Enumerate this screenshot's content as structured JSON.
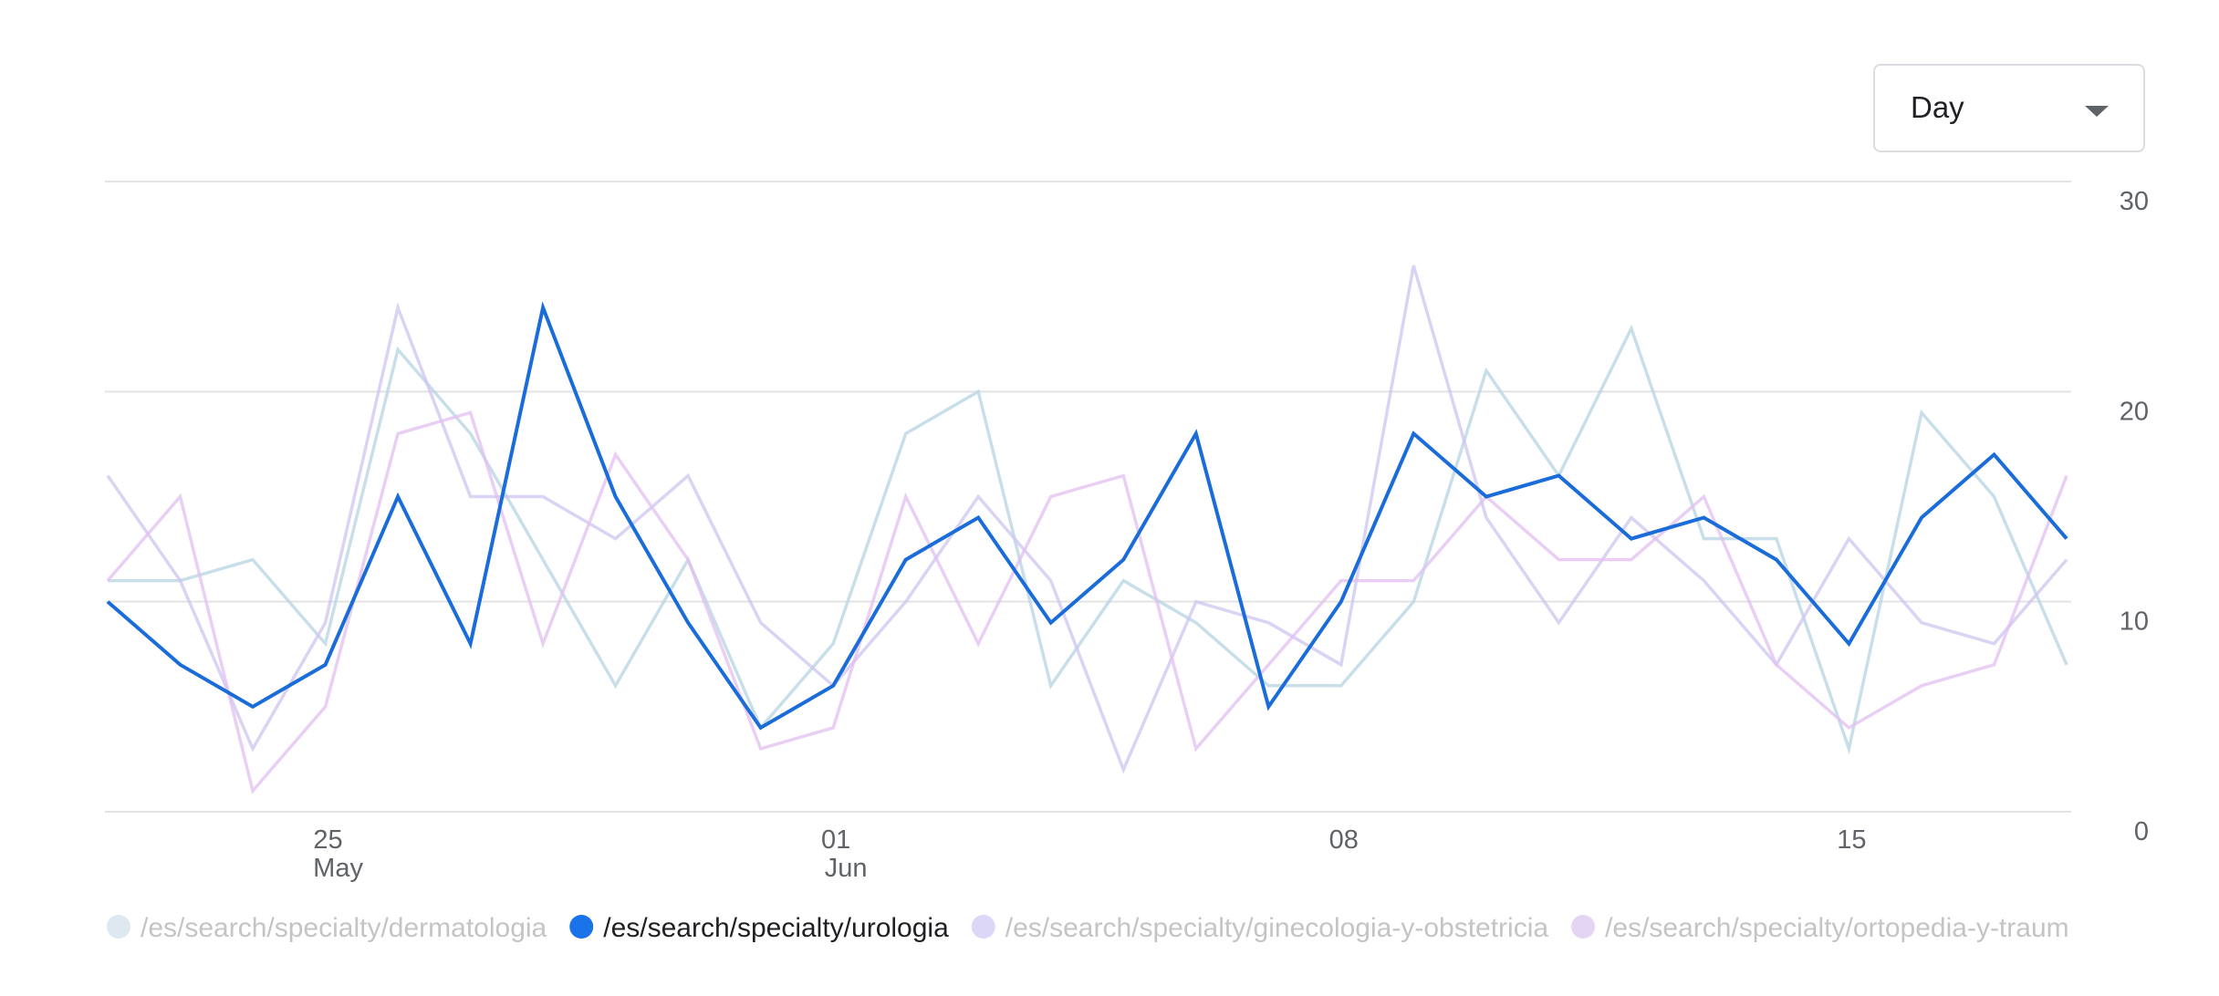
{
  "controls": {
    "granularity_label": "Day"
  },
  "colors": {
    "gridline": "#e3e3e3",
    "axis_text": "#5f6368",
    "legend_active_text": "#202124",
    "legend_inactive_text": "#c4c4c4"
  },
  "chart_data": {
    "type": "line",
    "title": "",
    "xlabel": "",
    "ylabel": "",
    "ylim": [
      0,
      30
    ],
    "y_ticks": [
      0,
      10,
      20,
      30
    ],
    "y_gridlines": [
      0,
      10,
      20,
      30
    ],
    "x": [
      "May 22",
      "May 23",
      "May 24",
      "May 25",
      "May 26",
      "May 27",
      "May 28",
      "May 29",
      "May 30",
      "May 31",
      "Jun 01",
      "Jun 02",
      "Jun 03",
      "Jun 04",
      "Jun 05",
      "Jun 06",
      "Jun 07",
      "Jun 08",
      "Jun 09",
      "Jun 10",
      "Jun 11",
      "Jun 12",
      "Jun 13",
      "Jun 14",
      "Jun 15",
      "Jun 16",
      "Jun 17",
      "Jun 18"
    ],
    "x_ticks": [
      {
        "index": 3,
        "day": "25",
        "month": "May"
      },
      {
        "index": 10,
        "day": "01",
        "month": "Jun"
      },
      {
        "index": 17,
        "day": "08",
        "month": ""
      },
      {
        "index": 24,
        "day": "15",
        "month": ""
      }
    ],
    "series": [
      {
        "name": "/es/search/specialty/dermatologia",
        "color": "#b5d4e3",
        "highlighted": false,
        "legend_dot": "#dde8f1",
        "values": [
          11,
          11,
          12,
          8,
          22,
          18,
          12,
          6,
          12,
          4,
          8,
          18,
          20,
          6,
          11,
          9,
          6,
          6,
          10,
          21,
          16,
          23,
          13,
          13,
          3,
          19,
          15,
          7
        ]
      },
      {
        "name": "/es/search/specialty/urologia",
        "color": "#1a6dd9",
        "highlighted": true,
        "legend_dot": "#1a73e8",
        "values": [
          10,
          7,
          5,
          7,
          15,
          8,
          24,
          15,
          9,
          4,
          6,
          12,
          14,
          9,
          12,
          18,
          5,
          10,
          18,
          15,
          16,
          13,
          14,
          12,
          8,
          14,
          17,
          13
        ]
      },
      {
        "name": "/es/search/specialty/ginecologia-y-obstetricia",
        "color": "#cdc4f0",
        "highlighted": false,
        "legend_dot": "#dcd7f7",
        "values": [
          16,
          11,
          3,
          9,
          24,
          15,
          15,
          13,
          16,
          9,
          6,
          10,
          15,
          11,
          2,
          10,
          9,
          7,
          26,
          14,
          9,
          14,
          11,
          7,
          13,
          9,
          8,
          12
        ]
      },
      {
        "name": "/es/search/specialty/ortopedia-y-traum",
        "color": "#e3bff0",
        "highlighted": false,
        "legend_dot": "#e5d5f5",
        "values": [
          11,
          15,
          1,
          5,
          18,
          19,
          8,
          17,
          12,
          3,
          4,
          15,
          8,
          15,
          16,
          3,
          7,
          11,
          11,
          15,
          12,
          12,
          15,
          7,
          4,
          6,
          7,
          16
        ]
      }
    ]
  }
}
